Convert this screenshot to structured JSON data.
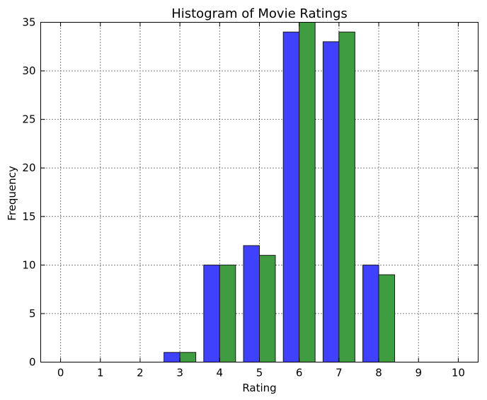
{
  "chart_data": {
    "type": "bar",
    "title": "Histogram of Movie Ratings",
    "xlabel": "Rating",
    "ylabel": "Frequency",
    "categories": [
      "0",
      "1",
      "2",
      "3",
      "4",
      "5",
      "6",
      "7",
      "8",
      "9",
      "10"
    ],
    "x_ticks": [
      "0",
      "1",
      "2",
      "3",
      "4",
      "5",
      "6",
      "7",
      "8",
      "9",
      "10"
    ],
    "y_ticks": [
      "0",
      "5",
      "10",
      "15",
      "20",
      "25",
      "30",
      "35"
    ],
    "xlim": [
      -0.5,
      10.5
    ],
    "ylim": [
      0,
      35
    ],
    "grid": true,
    "legend": "none",
    "series": [
      {
        "color": "#4040ff",
        "values": [
          0,
          0,
          0,
          1,
          10,
          12,
          34,
          33,
          10,
          0,
          0
        ]
      },
      {
        "color": "#409c40",
        "values": [
          0,
          0,
          0,
          1,
          10,
          11,
          35,
          34,
          9,
          0,
          0
        ]
      }
    ]
  }
}
